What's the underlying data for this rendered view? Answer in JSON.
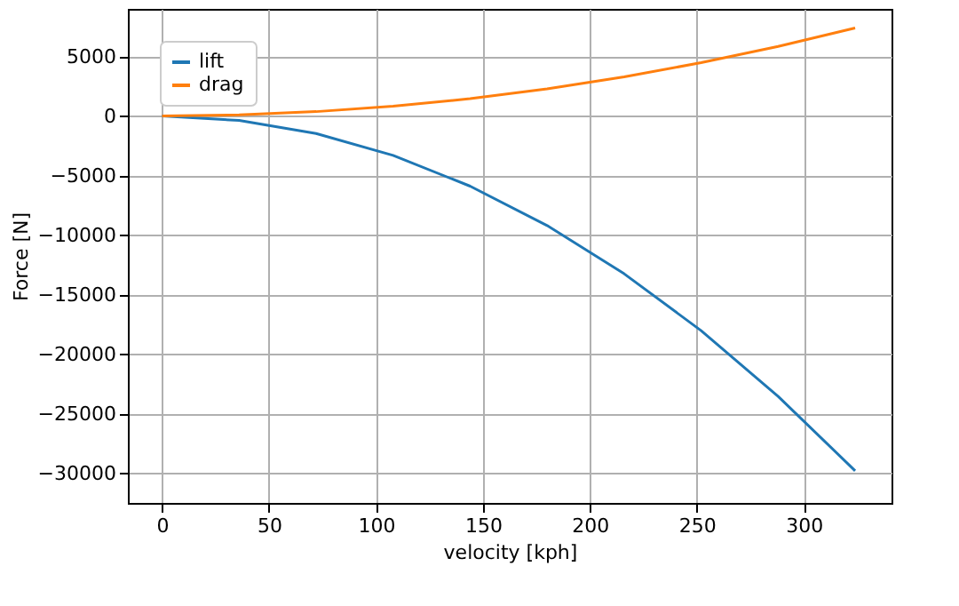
{
  "chart_data": {
    "type": "line",
    "xlabel": "velocity [kph]",
    "ylabel": "Force  [N]",
    "x": [
      0,
      36,
      72,
      108,
      144,
      180,
      216,
      252,
      288,
      324
    ],
    "series": [
      {
        "name": "lift",
        "color": "#1f77b4",
        "values": [
          0,
          -370,
          -1470,
          -3310,
          -5890,
          -9200,
          -13250,
          -18030,
          -23550,
          -29800
        ]
      },
      {
        "name": "drag",
        "color": "#ff7f0e",
        "values": [
          0,
          90,
          370,
          820,
          1460,
          2280,
          3290,
          4480,
          5850,
          7400
        ]
      }
    ],
    "xlim": [
      -16,
      341
    ],
    "ylim": [
      -32500,
      9000
    ],
    "xticks": [
      0,
      50,
      100,
      150,
      200,
      250,
      300
    ],
    "yticks": [
      -30000,
      -25000,
      -20000,
      -15000,
      -10000,
      -5000,
      0,
      5000
    ],
    "grid": true,
    "legend": "top left",
    "marker": "none",
    "line_style": "solid"
  }
}
